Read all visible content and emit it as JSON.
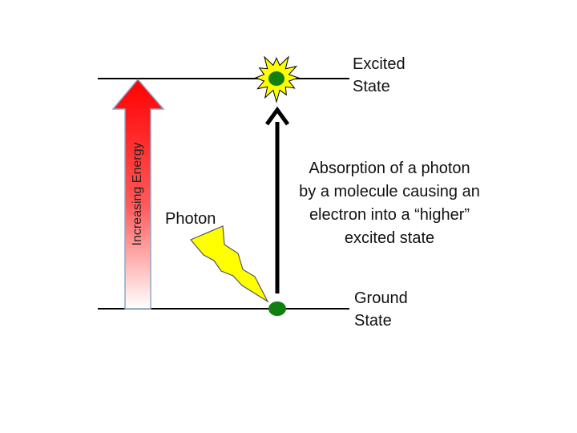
{
  "levels": {
    "excited_label_lines": [
      "Excited",
      "State"
    ],
    "ground_label_lines": [
      "Ground",
      "State"
    ]
  },
  "energy_arrow": {
    "label": "Increasing Energy",
    "colors": {
      "top": "#ff0000",
      "bottom": "#ffffff",
      "outline": "#8fa8c8"
    }
  },
  "photon": {
    "label": "Photon",
    "icon": "lightning-bolt-icon",
    "color": "#ffff00"
  },
  "transition": {
    "description_lines": [
      "Absorption of a photon",
      "by a molecule causing an",
      "electron into a “higher”",
      "excited state"
    ],
    "arrow_color": "#000000"
  },
  "electron": {
    "color": "#108010",
    "starburst_color": "#ffff00"
  }
}
